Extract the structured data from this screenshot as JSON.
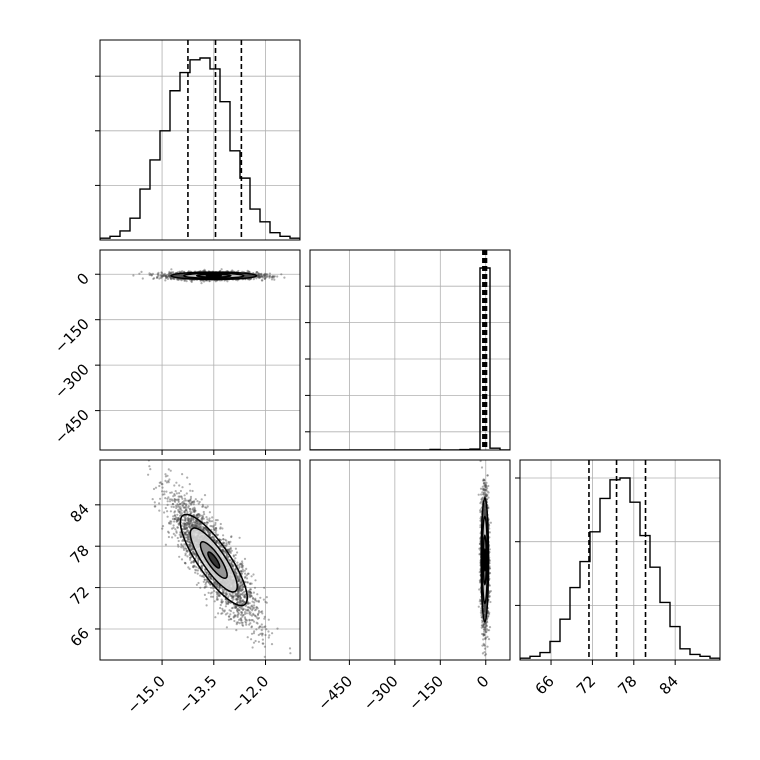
{
  "figure": {
    "type": "corner-plot",
    "colors": {
      "ink": "#000000",
      "grid": "#b0b0b0",
      "background": "#ffffff"
    }
  },
  "chart_data": [
    {
      "type": "histogram",
      "panel": "row-1-col-1",
      "x_range": [
        -16.8,
        -11.0
      ],
      "bin_edges_from": -16.8,
      "bin_width": 0.29,
      "counts": [
        0.01,
        0.02,
        0.05,
        0.12,
        0.28,
        0.44,
        0.6,
        0.82,
        0.92,
        0.99,
        1.0,
        0.94,
        0.76,
        0.49,
        0.34,
        0.17,
        0.1,
        0.04,
        0.02,
        0.01
      ],
      "quantile_lines": [
        -14.25,
        -13.45,
        -12.7
      ],
      "y_gridlines_fraction": [
        0.3,
        0.6,
        0.9
      ],
      "grid": true
    },
    {
      "type": "scatter-contour",
      "panel": "row-2-col-1",
      "x_range": [
        -16.8,
        -11.0
      ],
      "y_range": [
        -580,
        80
      ],
      "y_ticks": [
        0,
        -150,
        -300,
        -450
      ],
      "y_tick_labels": [
        "0",
        "−150",
        "−300",
        "−450"
      ],
      "center": {
        "x": -13.5,
        "y": -5
      },
      "spread": {
        "x": 0.62,
        "y": 6
      },
      "grid": true
    },
    {
      "type": "histogram",
      "panel": "row-2-col-2",
      "x_range": [
        -580,
        80
      ],
      "bin_edges_from": -580,
      "bin_width": 33,
      "counts": [
        0.0,
        0.0,
        0.0,
        0.0,
        0.0,
        0.0,
        0.0,
        0.0,
        0.0,
        0.0,
        0.0,
        0.0,
        0.003,
        0.0,
        0.0,
        0.002,
        0.005,
        1.0,
        0.01,
        0.0
      ],
      "quantile_lines": [
        -8,
        -4,
        1
      ],
      "y_gridlines_fraction": [
        0.1,
        0.3,
        0.5,
        0.7,
        0.9
      ],
      "grid": true
    },
    {
      "type": "scatter-contour",
      "panel": "row-3-col-1",
      "x_range": [
        -16.8,
        -11.0
      ],
      "y_range": [
        61.5,
        90.5
      ],
      "x_ticks": [
        -15.0,
        -13.5,
        -12.0
      ],
      "x_tick_labels": [
        "−15.0",
        "−13.5",
        "−12.0"
      ],
      "y_ticks": [
        66,
        72,
        78,
        84
      ],
      "y_tick_labels": [
        "66",
        "72",
        "78",
        "84"
      ],
      "center": {
        "x": -13.5,
        "y": 76.0
      },
      "spread": {
        "x": 0.62,
        "y": 4.5
      },
      "correlation": -0.85,
      "grid": true
    },
    {
      "type": "scatter-contour",
      "panel": "row-3-col-2",
      "x_range": [
        -580,
        80
      ],
      "y_range": [
        61.5,
        90.5
      ],
      "x_ticks": [
        -450,
        -300,
        -150,
        0
      ],
      "x_tick_labels": [
        "−450",
        "−300",
        "−150",
        "0"
      ],
      "center": {
        "x": -3,
        "y": 76.0
      },
      "spread": {
        "x": 6,
        "y": 4.5
      },
      "grid": true
    },
    {
      "type": "histogram",
      "panel": "row-3-col-3",
      "x_range": [
        61.5,
        90.5
      ],
      "x_ticks": [
        66,
        72,
        78,
        84
      ],
      "x_tick_labels": [
        "66",
        "72",
        "78",
        "84"
      ],
      "bin_edges_from": 61.5,
      "bin_width": 1.45,
      "counts": [
        0.01,
        0.02,
        0.04,
        0.1,
        0.22,
        0.39,
        0.53,
        0.69,
        0.87,
        0.97,
        0.98,
        0.85,
        0.67,
        0.5,
        0.31,
        0.18,
        0.06,
        0.03,
        0.02,
        0.01
      ],
      "quantile_lines": [
        71.5,
        75.5,
        79.7
      ],
      "y_gridlines_fraction": [
        0.3,
        0.65,
        1.0
      ],
      "grid": true
    }
  ]
}
